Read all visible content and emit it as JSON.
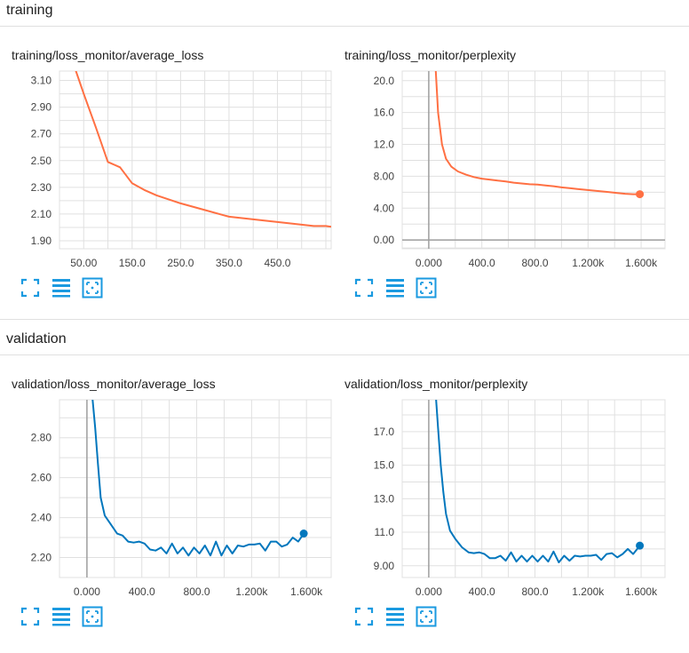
{
  "colors": {
    "training": "#ff7043",
    "validation": "#0277bd",
    "icon": "#1a9ae0"
  },
  "sections": [
    {
      "title": "training"
    },
    {
      "title": "validation"
    }
  ],
  "icons": [
    "fullscreen-icon",
    "log-scale-icon",
    "fit-domain-icon"
  ],
  "chart_data": [
    {
      "type": "line",
      "title": "training/loss_monitor/average_loss",
      "series_color": "training",
      "xlim": [
        0,
        561
      ],
      "ylim": [
        1.84,
        3.17
      ],
      "xticks": [
        50,
        150,
        250,
        350,
        450
      ],
      "xtick_labels": [
        "50.00",
        "150.0",
        "250.0",
        "350.0",
        "450.0"
      ],
      "yticks": [
        1.9,
        2.1,
        2.3,
        2.5,
        2.7,
        2.9,
        3.1
      ],
      "ytick_labels": [
        "1.90",
        "2.10",
        "2.30",
        "2.50",
        "2.70",
        "2.90",
        "3.10"
      ],
      "x_grid": [
        0,
        50,
        100,
        150,
        200,
        250,
        300,
        350,
        400,
        450,
        500,
        550
      ],
      "y_grid": [
        1.9,
        2.0,
        2.1,
        2.2,
        2.3,
        2.4,
        2.5,
        2.6,
        2.7,
        2.8,
        2.9,
        3.0,
        3.1
      ],
      "zero_line": false,
      "end_marker": false,
      "series": [
        {
          "x": [
            33,
            50,
            75,
            100,
            125,
            150,
            175,
            200,
            250,
            300,
            350,
            375,
            400,
            425,
            450,
            475,
            500,
            525,
            550,
            561
          ],
          "y": [
            3.18,
            3.0,
            2.75,
            2.49,
            2.45,
            2.33,
            2.28,
            2.24,
            2.18,
            2.13,
            2.08,
            2.07,
            2.06,
            2.05,
            2.04,
            2.03,
            2.02,
            2.01,
            2.01,
            2.005
          ]
        }
      ]
    },
    {
      "type": "line",
      "title": "training/loss_monitor/perplexity",
      "series_color": "training",
      "xlim": [
        -200,
        1780
      ],
      "ylim": [
        -1.1,
        21.2
      ],
      "xticks": [
        0,
        400,
        800,
        1200,
        1600
      ],
      "xtick_labels": [
        "0.000",
        "400.0",
        "800.0",
        "1.200k",
        "1.600k"
      ],
      "yticks": [
        0,
        4,
        8,
        12,
        16,
        20
      ],
      "ytick_labels": [
        "0.00",
        "4.00",
        "8.00",
        "12.0",
        "16.0",
        "20.0"
      ],
      "x_grid": [
        -200,
        0,
        200,
        400,
        600,
        800,
        1000,
        1200,
        1400,
        1600
      ],
      "y_grid": [
        -1,
        0,
        2,
        4,
        6,
        8,
        10,
        12,
        14,
        16,
        18,
        20
      ],
      "zero_line": true,
      "end_marker": true,
      "series": [
        {
          "x": [
            50,
            70,
            100,
            130,
            170,
            220,
            280,
            340,
            400,
            450,
            520,
            580,
            640,
            700,
            760,
            820,
            880,
            940,
            1000,
            1060,
            1120,
            1180,
            1240,
            1300,
            1360,
            1420,
            1480,
            1540,
            1590
          ],
          "y": [
            22,
            16,
            12,
            10.2,
            9.2,
            8.6,
            8.2,
            7.9,
            7.7,
            7.6,
            7.45,
            7.35,
            7.2,
            7.1,
            7.0,
            6.95,
            6.85,
            6.75,
            6.6,
            6.5,
            6.4,
            6.3,
            6.2,
            6.1,
            6.0,
            5.9,
            5.8,
            5.75,
            5.75
          ]
        }
      ]
    },
    {
      "type": "line",
      "title": "validation/loss_monitor/average_loss",
      "series_color": "validation",
      "xlim": [
        -200,
        1780
      ],
      "ylim": [
        2.1,
        2.99
      ],
      "xticks": [
        0,
        400,
        800,
        1200,
        1600
      ],
      "xtick_labels": [
        "0.000",
        "400.0",
        "800.0",
        "1.200k",
        "1.600k"
      ],
      "yticks": [
        2.2,
        2.4,
        2.6,
        2.8
      ],
      "ytick_labels": [
        "2.20",
        "2.40",
        "2.60",
        "2.80"
      ],
      "x_grid": [
        -200,
        0,
        200,
        400,
        600,
        800,
        1000,
        1200,
        1400,
        1600
      ],
      "y_grid": [
        2.1,
        2.2,
        2.3,
        2.4,
        2.5,
        2.6,
        2.7,
        2.8,
        2.9
      ],
      "zero_line": true,
      "end_marker": true,
      "series": [
        {
          "x": [
            40,
            60,
            80,
            100,
            130,
            170,
            220,
            260,
            300,
            340,
            380,
            420,
            460,
            500,
            540,
            580,
            620,
            660,
            700,
            740,
            780,
            820,
            860,
            900,
            940,
            980,
            1020,
            1060,
            1100,
            1140,
            1180,
            1220,
            1260,
            1300,
            1340,
            1380,
            1420,
            1460,
            1500,
            1540,
            1580
          ],
          "y": [
            3.0,
            2.85,
            2.67,
            2.5,
            2.41,
            2.37,
            2.32,
            2.31,
            2.28,
            2.275,
            2.28,
            2.27,
            2.24,
            2.235,
            2.25,
            2.22,
            2.27,
            2.22,
            2.25,
            2.21,
            2.25,
            2.22,
            2.26,
            2.21,
            2.28,
            2.21,
            2.26,
            2.22,
            2.26,
            2.255,
            2.265,
            2.265,
            2.27,
            2.235,
            2.28,
            2.28,
            2.255,
            2.265,
            2.3,
            2.28,
            2.32
          ]
        }
      ]
    },
    {
      "type": "line",
      "title": "validation/loss_monitor/perplexity",
      "series_color": "validation",
      "xlim": [
        -200,
        1780
      ],
      "ylim": [
        8.3,
        18.9
      ],
      "xticks": [
        0,
        400,
        800,
        1200,
        1600
      ],
      "xtick_labels": [
        "0.000",
        "400.0",
        "800.0",
        "1.200k",
        "1.600k"
      ],
      "yticks": [
        9,
        11,
        13,
        15,
        17
      ],
      "ytick_labels": [
        "9.00",
        "11.0",
        "13.0",
        "15.0",
        "17.0"
      ],
      "x_grid": [
        -200,
        0,
        200,
        400,
        600,
        800,
        1000,
        1200,
        1400,
        1600
      ],
      "y_grid": [
        9,
        10,
        11,
        12,
        13,
        14,
        15,
        16,
        17,
        18
      ],
      "zero_line": true,
      "end_marker": true,
      "series": [
        {
          "x": [
            50,
            70,
            90,
            110,
            130,
            160,
            200,
            250,
            300,
            340,
            380,
            420,
            460,
            500,
            540,
            580,
            620,
            660,
            700,
            740,
            780,
            820,
            860,
            900,
            940,
            980,
            1020,
            1060,
            1100,
            1140,
            1180,
            1220,
            1260,
            1300,
            1340,
            1380,
            1420,
            1460,
            1500,
            1540,
            1590
          ],
          "y": [
            19.5,
            17.2,
            15.0,
            13.4,
            12.1,
            11.1,
            10.6,
            10.1,
            9.8,
            9.75,
            9.8,
            9.7,
            9.45,
            9.45,
            9.6,
            9.3,
            9.8,
            9.25,
            9.6,
            9.25,
            9.6,
            9.25,
            9.6,
            9.25,
            9.85,
            9.2,
            9.6,
            9.3,
            9.6,
            9.55,
            9.6,
            9.6,
            9.65,
            9.35,
            9.7,
            9.75,
            9.5,
            9.7,
            10.0,
            9.7,
            10.2
          ]
        }
      ]
    }
  ]
}
